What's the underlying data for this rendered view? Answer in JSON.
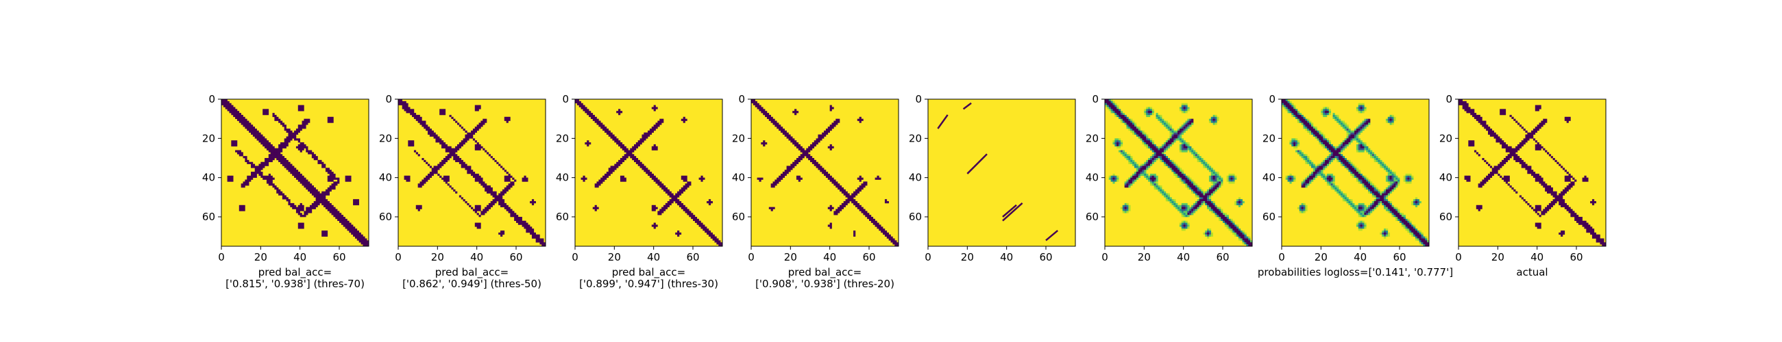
{
  "colors": {
    "background": "#fde725",
    "contact": "#440154",
    "mid_dark": "#3b528b",
    "mid": "#21918c",
    "mid_light": "#5ec962",
    "light": "#b5de2b"
  },
  "chart_data": [
    {
      "type": "heatmap",
      "caption": [
        "pred bal_acc=",
        "['0.815', '0.938'] (thres-70)"
      ],
      "x_ticks": [
        "0",
        "20",
        "40",
        "60"
      ],
      "y_ticks": [
        "0",
        "20",
        "40",
        "60"
      ],
      "xlim": [
        0,
        75
      ],
      "ylim": [
        0,
        75
      ],
      "binary": true,
      "threshold_percent": 70,
      "bal_acc": [
        0.815,
        0.938
      ]
    },
    {
      "type": "heatmap",
      "caption": [
        "pred bal_acc=",
        "['0.862', '0.949'] (thres-50)"
      ],
      "x_ticks": [
        "0",
        "20",
        "40",
        "60"
      ],
      "y_ticks": [
        "0",
        "20",
        "40",
        "60"
      ],
      "xlim": [
        0,
        75
      ],
      "ylim": [
        0,
        75
      ],
      "binary": true,
      "threshold_percent": 50,
      "bal_acc": [
        0.862,
        0.949
      ]
    },
    {
      "type": "heatmap",
      "caption": [
        "pred bal_acc=",
        "['0.899', '0.947'] (thres-30)"
      ],
      "x_ticks": [
        "0",
        "20",
        "40",
        "60"
      ],
      "y_ticks": [
        "0",
        "20",
        "40",
        "60"
      ],
      "xlim": [
        0,
        75
      ],
      "ylim": [
        0,
        75
      ],
      "binary": true,
      "threshold_percent": 30,
      "bal_acc": [
        0.899,
        0.947
      ]
    },
    {
      "type": "heatmap",
      "caption": [
        "pred bal_acc=",
        "['0.908', '0.938'] (thres-20)"
      ],
      "x_ticks": [
        "0",
        "20",
        "40",
        "60"
      ],
      "y_ticks": [
        "0",
        "20",
        "40",
        "60"
      ],
      "xlim": [
        0,
        75
      ],
      "ylim": [
        0,
        75
      ],
      "binary": true,
      "threshold_percent": 20,
      "bal_acc": [
        0.908,
        0.938
      ]
    },
    {
      "type": "heatmap",
      "caption": [],
      "x_ticks": [
        "0",
        "20",
        "40",
        "60"
      ],
      "y_ticks": [
        "0",
        "20",
        "40",
        "60"
      ],
      "xlim": [
        0,
        75
      ],
      "ylim": [
        0,
        75
      ],
      "binary": true,
      "sparse_diagonals": true
    },
    {
      "type": "heatmap",
      "caption": [],
      "x_ticks": [
        "0",
        "20",
        "40",
        "60"
      ],
      "y_ticks": [
        "0",
        "20",
        "40",
        "60"
      ],
      "xlim": [
        0,
        75
      ],
      "ylim": [
        0,
        75
      ],
      "binary": false,
      "continuous_probabilities": true
    },
    {
      "type": "heatmap",
      "caption": [
        "probabilities logloss=['0.141', '0.777']"
      ],
      "x_ticks": [
        "0",
        "20",
        "40",
        "60"
      ],
      "y_ticks": [
        "0",
        "20",
        "40",
        "60"
      ],
      "xlim": [
        0,
        75
      ],
      "ylim": [
        0,
        75
      ],
      "binary": false,
      "logloss": [
        0.141,
        0.777
      ]
    },
    {
      "type": "heatmap",
      "caption": [
        "actual"
      ],
      "x_ticks": [
        "0",
        "20",
        "40",
        "60"
      ],
      "y_ticks": [
        "0",
        "20",
        "40",
        "60"
      ],
      "xlim": [
        0,
        75
      ],
      "ylim": [
        0,
        75
      ],
      "binary": true,
      "ground_truth": true
    }
  ]
}
